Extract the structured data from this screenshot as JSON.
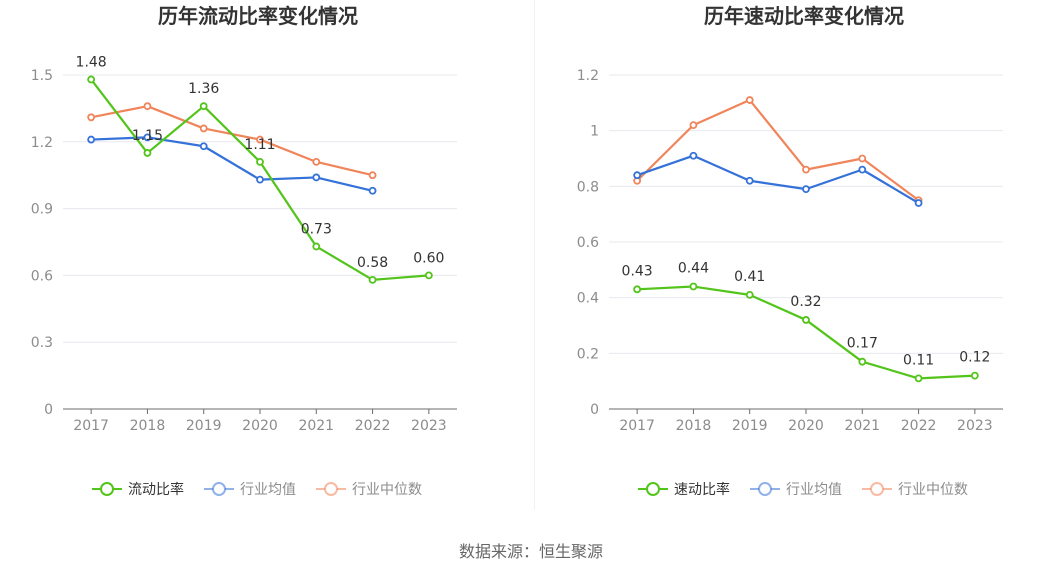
{
  "chart_data": [
    {
      "type": "line",
      "title": "历年流动比率变化情况",
      "categories": [
        "2017",
        "2018",
        "2019",
        "2020",
        "2021",
        "2022",
        "2023"
      ],
      "ylim": [
        0,
        1.5
      ],
      "yticks": [
        "0",
        "0.3",
        "0.6",
        "0.9",
        "1.2",
        "1.5"
      ],
      "grid": true,
      "legend_position": "bottom",
      "series": [
        {
          "name": "流动比率",
          "color": "#52c41a",
          "show_labels": true,
          "values": [
            1.48,
            1.15,
            1.36,
            1.11,
            0.73,
            0.58,
            0.6
          ],
          "labels": [
            "1.48",
            "1.15",
            "1.36",
            "1.11",
            "0.73",
            "0.58",
            "0.60"
          ]
        },
        {
          "name": "行业均值",
          "color": "#3471d8",
          "show_labels": false,
          "values": [
            1.21,
            1.22,
            1.18,
            1.03,
            1.04,
            0.98,
            null
          ]
        },
        {
          "name": "行业中位数",
          "color": "#f0845a",
          "show_labels": false,
          "values": [
            1.31,
            1.36,
            1.26,
            1.21,
            1.11,
            1.05,
            null
          ]
        }
      ]
    },
    {
      "type": "line",
      "title": "历年速动比率变化情况",
      "categories": [
        "2017",
        "2018",
        "2019",
        "2020",
        "2021",
        "2022",
        "2023"
      ],
      "ylim": [
        0,
        1.2
      ],
      "yticks": [
        "0",
        "0.2",
        "0.4",
        "0.6",
        "0.8",
        "1",
        "1.2"
      ],
      "grid": true,
      "legend_position": "bottom",
      "series": [
        {
          "name": "速动比率",
          "color": "#52c41a",
          "show_labels": true,
          "values": [
            0.43,
            0.44,
            0.41,
            0.32,
            0.17,
            0.11,
            0.12
          ],
          "labels": [
            "0.43",
            "0.44",
            "0.41",
            "0.32",
            "0.17",
            "0.11",
            "0.12"
          ]
        },
        {
          "name": "行业均值",
          "color": "#3471d8",
          "show_labels": false,
          "values": [
            0.84,
            0.91,
            0.82,
            0.79,
            0.86,
            0.74,
            null
          ]
        },
        {
          "name": "行业中位数",
          "color": "#f0845a",
          "show_labels": false,
          "values": [
            0.82,
            1.02,
            1.11,
            0.86,
            0.9,
            0.75,
            null
          ]
        }
      ]
    }
  ],
  "source": "数据来源：恒生聚源"
}
